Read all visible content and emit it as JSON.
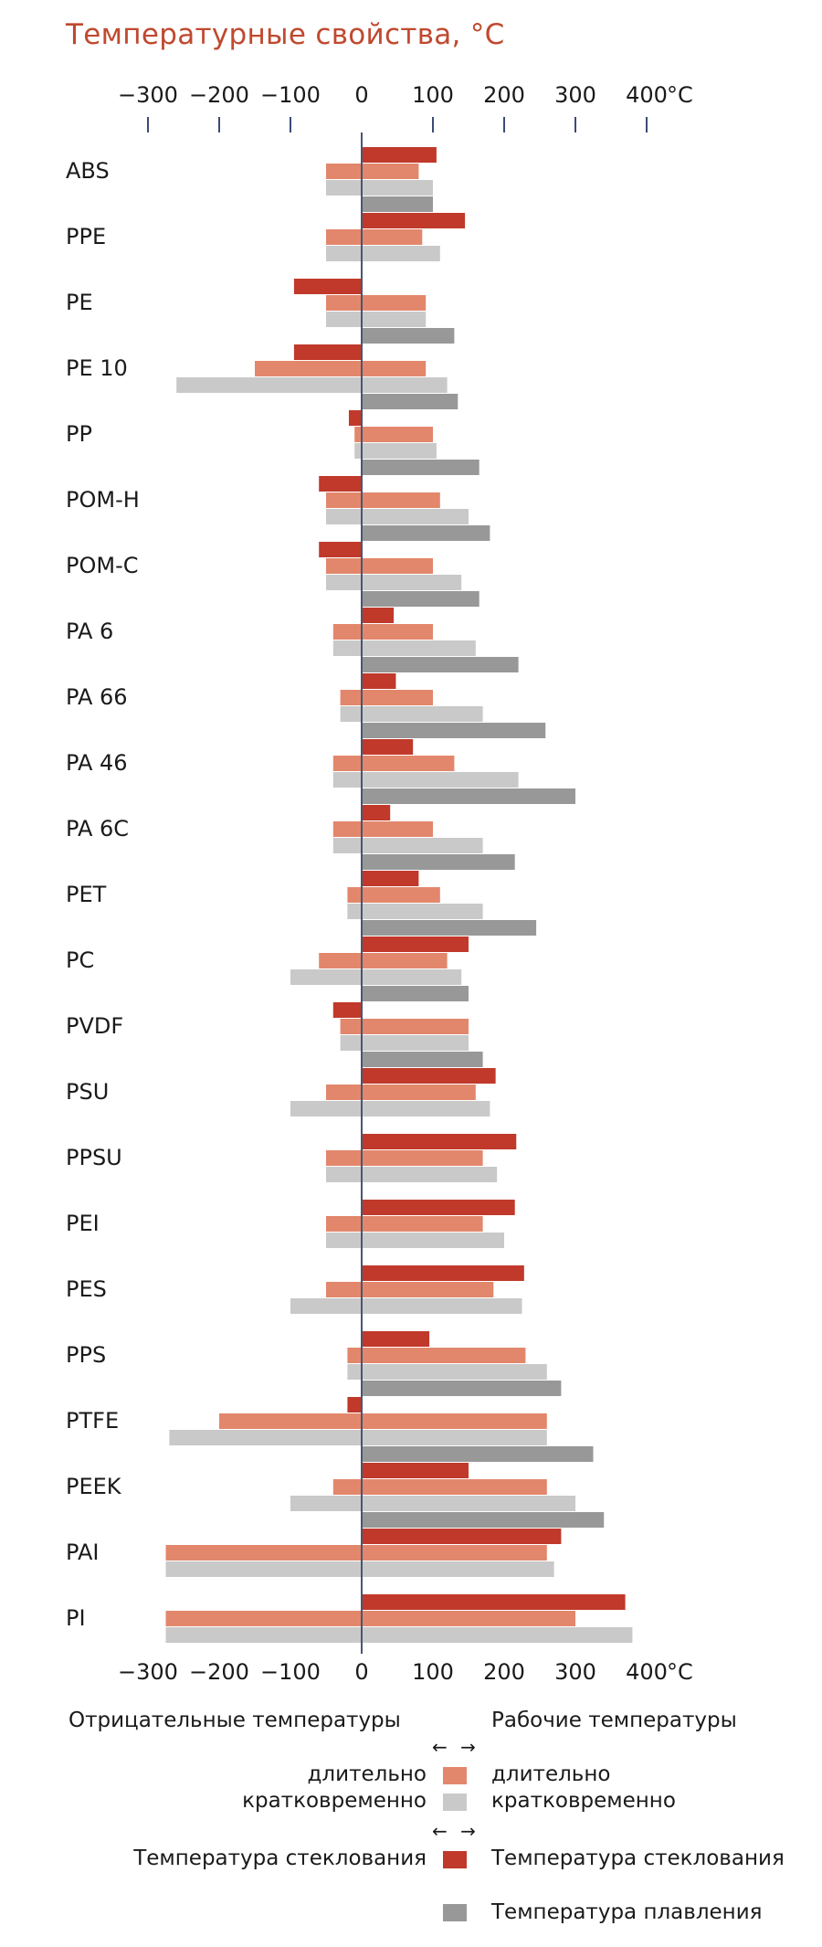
{
  "chart_data": {
    "type": "bar",
    "title": "Температурные свойства, °C",
    "unit_label": "°C",
    "xlim": [
      -300,
      400
    ],
    "xticks": [
      -300,
      -200,
      -100,
      0,
      100,
      200,
      300,
      400
    ],
    "grid": false,
    "categories": [
      "ABS",
      "PPE",
      "PE",
      "PE 10",
      "PP",
      "POM-H",
      "POM-C",
      "PA 6",
      "PA 66",
      "PA 46",
      "PA 6C",
      "PET",
      "PC",
      "PVDF",
      "PSU",
      "PPSU",
      "PEI",
      "PES",
      "PPS",
      "PTFE",
      "PEEK",
      "PAI",
      "PI"
    ],
    "series": [
      {
        "key": "neg_long",
        "values": [
          -50,
          -50,
          -50,
          -150,
          -10,
          -50,
          -50,
          -40,
          -30,
          -40,
          -40,
          -20,
          -60,
          -30,
          -50,
          -50,
          -50,
          -50,
          -20,
          -200,
          -40,
          -275,
          -275
        ]
      },
      {
        "key": "neg_short",
        "values": [
          -50,
          -50,
          -50,
          -260,
          -10,
          -50,
          -50,
          -40,
          -30,
          -40,
          -40,
          -20,
          -100,
          -30,
          -100,
          -50,
          -50,
          -100,
          -20,
          -270,
          -100,
          -275,
          -275
        ]
      },
      {
        "key": "neg_glass",
        "values": [
          null,
          null,
          -95,
          -95,
          -18,
          -60,
          -60,
          null,
          null,
          null,
          null,
          null,
          null,
          -40,
          null,
          null,
          null,
          null,
          null,
          -20,
          null,
          null,
          null
        ]
      },
      {
        "key": "work_long",
        "values": [
          80,
          85,
          90,
          90,
          100,
          110,
          100,
          100,
          100,
          130,
          100,
          110,
          120,
          150,
          160,
          170,
          170,
          185,
          230,
          260,
          260,
          260,
          300
        ]
      },
      {
        "key": "work_short",
        "values": [
          100,
          110,
          90,
          120,
          105,
          150,
          140,
          160,
          170,
          220,
          170,
          170,
          140,
          150,
          180,
          190,
          200,
          225,
          260,
          260,
          300,
          270,
          380
        ]
      },
      {
        "key": "glass",
        "values": [
          105,
          145,
          null,
          null,
          null,
          null,
          null,
          45,
          48,
          72,
          40,
          80,
          150,
          null,
          188,
          217,
          215,
          228,
          95,
          null,
          150,
          280,
          370
        ]
      },
      {
        "key": "melt",
        "values": [
          100,
          null,
          130,
          135,
          165,
          180,
          165,
          220,
          258,
          300,
          215,
          245,
          150,
          170,
          null,
          null,
          null,
          null,
          280,
          325,
          340,
          null,
          null
        ]
      }
    ]
  },
  "legend": {
    "negative_header": "Отрицательные температуры",
    "working_header": "Рабочие температуры",
    "long_left": "длительно",
    "short_left": "кратковременно",
    "long_right": "длительно",
    "short_right": "кратковременно",
    "glass_left": "Температура стеклования",
    "glass_right": "Температура стеклования",
    "melt": "Температура плавления",
    "arrows": "← →"
  },
  "colors": {
    "title": "#c0492f",
    "neg_long": "#e2876c",
    "neg_short": "#c9c9c9",
    "glass": "#c0392b",
    "work_long": "#e2876c",
    "work_short": "#c9c9c9",
    "melt": "#989898",
    "zero_line": "#4a5573",
    "tick": "#3d4a78"
  }
}
